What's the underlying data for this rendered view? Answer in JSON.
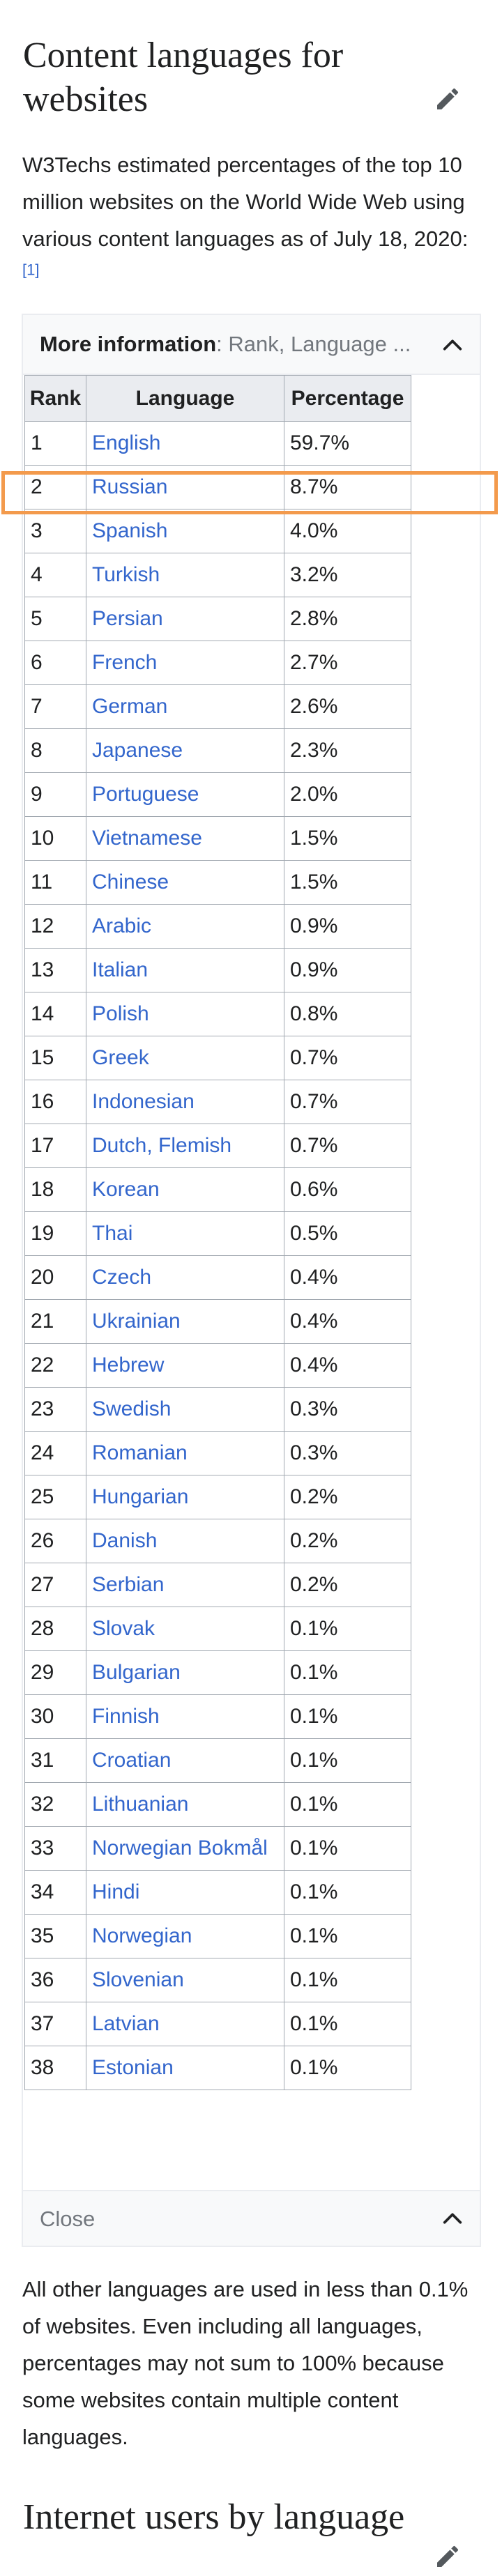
{
  "section1": {
    "heading": "Content languages for websites",
    "intro": "W3Techs estimated percentages of the top 10 million websites on the World Wide Web using various content languages as of July 18, 2020:",
    "ref": "[1]",
    "edit_icon": "pencil-icon"
  },
  "collapsible": {
    "header_bold": "More information",
    "header_rest": ": Rank, Language ...",
    "toggle_icon": "chevron-up-icon",
    "close_label": "Close"
  },
  "table": {
    "headers": [
      "Rank",
      "Language",
      "Percentage"
    ],
    "highlighted_row": 2,
    "rows": [
      {
        "rank": "1",
        "language": "English",
        "percentage": "59.7%"
      },
      {
        "rank": "2",
        "language": "Russian",
        "percentage": "8.7%"
      },
      {
        "rank": "3",
        "language": "Spanish",
        "percentage": "4.0%"
      },
      {
        "rank": "4",
        "language": "Turkish",
        "percentage": "3.2%"
      },
      {
        "rank": "5",
        "language": "Persian",
        "percentage": "2.8%"
      },
      {
        "rank": "6",
        "language": "French",
        "percentage": "2.7%"
      },
      {
        "rank": "7",
        "language": "German",
        "percentage": "2.6%"
      },
      {
        "rank": "8",
        "language": "Japanese",
        "percentage": "2.3%"
      },
      {
        "rank": "9",
        "language": "Portuguese",
        "percentage": "2.0%"
      },
      {
        "rank": "10",
        "language": "Vietnamese",
        "percentage": "1.5%"
      },
      {
        "rank": "11",
        "language": "Chinese",
        "percentage": "1.5%"
      },
      {
        "rank": "12",
        "language": "Arabic",
        "percentage": "0.9%"
      },
      {
        "rank": "13",
        "language": "Italian",
        "percentage": "0.9%"
      },
      {
        "rank": "14",
        "language": "Polish",
        "percentage": "0.8%"
      },
      {
        "rank": "15",
        "language": "Greek",
        "percentage": "0.7%"
      },
      {
        "rank": "16",
        "language": "Indonesian",
        "percentage": "0.7%"
      },
      {
        "rank": "17",
        "language": "Dutch, Flemish",
        "percentage": "0.7%"
      },
      {
        "rank": "18",
        "language": "Korean",
        "percentage": "0.6%"
      },
      {
        "rank": "19",
        "language": "Thai",
        "percentage": "0.5%"
      },
      {
        "rank": "20",
        "language": "Czech",
        "percentage": "0.4%"
      },
      {
        "rank": "21",
        "language": "Ukrainian",
        "percentage": "0.4%"
      },
      {
        "rank": "22",
        "language": "Hebrew",
        "percentage": "0.4%"
      },
      {
        "rank": "23",
        "language": "Swedish",
        "percentage": "0.3%"
      },
      {
        "rank": "24",
        "language": "Romanian",
        "percentage": "0.3%"
      },
      {
        "rank": "25",
        "language": "Hungarian",
        "percentage": "0.2%"
      },
      {
        "rank": "26",
        "language": "Danish",
        "percentage": "0.2%"
      },
      {
        "rank": "27",
        "language": "Serbian",
        "percentage": "0.2%"
      },
      {
        "rank": "28",
        "language": "Slovak",
        "percentage": "0.1%"
      },
      {
        "rank": "29",
        "language": "Bulgarian",
        "percentage": "0.1%"
      },
      {
        "rank": "30",
        "language": "Finnish",
        "percentage": "0.1%"
      },
      {
        "rank": "31",
        "language": "Croatian",
        "percentage": "0.1%"
      },
      {
        "rank": "32",
        "language": "Lithuanian",
        "percentage": "0.1%"
      },
      {
        "rank": "33",
        "language": "Norwegian Bokmål",
        "percentage": "0.1%"
      },
      {
        "rank": "34",
        "language": "Hindi",
        "percentage": "0.1%"
      },
      {
        "rank": "35",
        "language": "Norwegian",
        "percentage": "0.1%"
      },
      {
        "rank": "36",
        "language": "Slovenian",
        "percentage": "0.1%"
      },
      {
        "rank": "37",
        "language": "Latvian",
        "percentage": "0.1%"
      },
      {
        "rank": "38",
        "language": "Estonian",
        "percentage": "0.1%"
      }
    ]
  },
  "outro": "All other languages are used in less than 0.1% of websites. Even including all languages, percentages may not sum to 100% because some websites contain multiple content languages.",
  "section2": {
    "heading": "Internet users by language"
  },
  "colors": {
    "link": "#3366cc",
    "highlight": "#f39a4c",
    "header_bg": "#eaecf0",
    "border": "#a2a9b1"
  }
}
